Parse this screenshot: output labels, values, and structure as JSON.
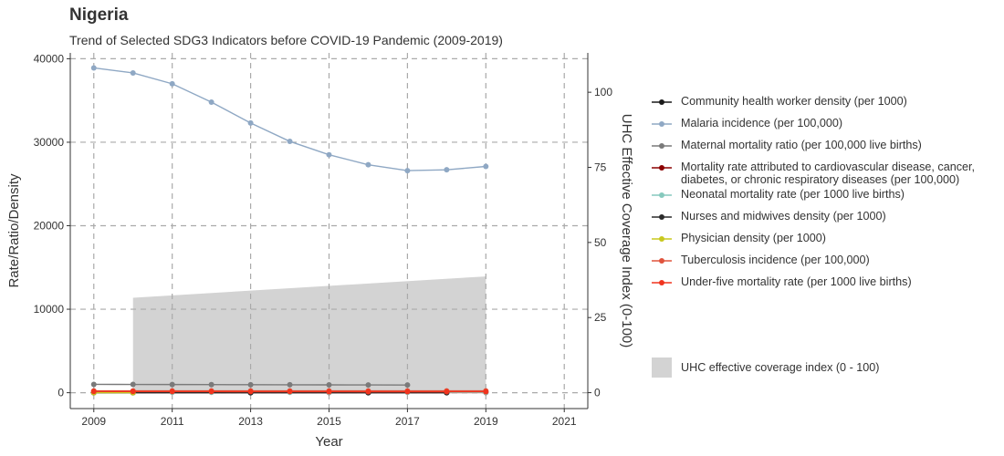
{
  "header": {
    "title": "Nigeria",
    "subtitle": "Trend of Selected SDG3 Indicators before COVID-19 Pandemic (2009-2019)"
  },
  "chart_data": {
    "type": "line",
    "xlabel": "Year",
    "ylabel": "Rate/Ratio/Density",
    "y2label": "UHC Effective Coverage Index (0-100)",
    "xlim": [
      2008.4,
      2021.6
    ],
    "ylim": [
      -1900,
      40700
    ],
    "y2lim": [
      -5.3,
      113.1
    ],
    "x_ticks": [
      2009,
      2011,
      2013,
      2015,
      2017,
      2019,
      2021
    ],
    "y_ticks": [
      0,
      10000,
      20000,
      30000,
      40000
    ],
    "y2_ticks": [
      0,
      25,
      50,
      75,
      100
    ],
    "grid": true,
    "legend_position": "right",
    "series": [
      {
        "name": "Community health worker density (per 1000)",
        "color": "#1a1a1a",
        "points": [
          [
            2009,
            0.14
          ],
          [
            2010,
            0.14
          ],
          [
            2013,
            0.14
          ],
          [
            2016,
            0.14
          ],
          [
            2018,
            0.14
          ]
        ]
      },
      {
        "name": "Malaria incidence (per 100,000)",
        "color": "#8fa8c4",
        "points": [
          [
            2009,
            38900
          ],
          [
            2010,
            38300
          ],
          [
            2011,
            37000
          ],
          [
            2012,
            34800
          ],
          [
            2013,
            32300
          ],
          [
            2014,
            30100
          ],
          [
            2015,
            28500
          ],
          [
            2016,
            27300
          ],
          [
            2017,
            26600
          ],
          [
            2018,
            26700
          ],
          [
            2019,
            27100
          ]
        ]
      },
      {
        "name": "Maternal mortality ratio (per 100,000 live births)",
        "color": "#7a7a7a",
        "points": [
          [
            2009,
            1000
          ],
          [
            2010,
            990
          ],
          [
            2011,
            980
          ],
          [
            2012,
            970
          ],
          [
            2013,
            960
          ],
          [
            2014,
            950
          ],
          [
            2015,
            940
          ],
          [
            2016,
            930
          ],
          [
            2017,
            920
          ]
        ]
      },
      {
        "name": "Mortality rate attributed to cardiovascular disease, cancer,\ndiabetes, or chronic respiratory diseases (per 100,000)",
        "color": "#8b0000",
        "points": [
          [
            2010,
            22
          ],
          [
            2015,
            22
          ],
          [
            2019,
            22
          ]
        ]
      },
      {
        "name": "Neonatal mortality rate (per 1000 live births)",
        "color": "#86c9bd",
        "points": [
          [
            2009,
            36
          ],
          [
            2010,
            36
          ],
          [
            2011,
            36
          ],
          [
            2012,
            36
          ],
          [
            2013,
            35
          ],
          [
            2014,
            35
          ],
          [
            2015,
            35
          ],
          [
            2016,
            35
          ],
          [
            2017,
            35
          ],
          [
            2018,
            35
          ],
          [
            2019,
            35
          ]
        ]
      },
      {
        "name": "Nurses and midwives density (per 1000)",
        "color": "#2b2b2b",
        "points": [
          [
            2009,
            1.2
          ],
          [
            2010,
            1.2
          ],
          [
            2013,
            1.2
          ],
          [
            2016,
            1.2
          ],
          [
            2018,
            1.2
          ]
        ]
      },
      {
        "name": "Physician density (per 1000)",
        "color": "#c8c81e",
        "points": [
          [
            2009,
            0.4
          ],
          [
            2010,
            0.4
          ]
        ]
      },
      {
        "name": "Tuberculosis incidence (per 100,000)",
        "color": "#e0533c",
        "points": [
          [
            2009,
            219
          ],
          [
            2010,
            219
          ],
          [
            2011,
            219
          ],
          [
            2012,
            219
          ],
          [
            2013,
            219
          ],
          [
            2014,
            219
          ],
          [
            2015,
            219
          ],
          [
            2016,
            219
          ],
          [
            2017,
            219
          ],
          [
            2018,
            219
          ],
          [
            2019,
            219
          ]
        ]
      },
      {
        "name": "Under-five mortality rate (per 1000 live births)",
        "color": "#f0341e",
        "points": [
          [
            2009,
            150
          ],
          [
            2010,
            145
          ],
          [
            2011,
            140
          ],
          [
            2012,
            136
          ],
          [
            2013,
            132
          ],
          [
            2014,
            128
          ],
          [
            2015,
            124
          ],
          [
            2016,
            121
          ],
          [
            2017,
            118
          ],
          [
            2018,
            116
          ],
          [
            2019,
            114
          ]
        ]
      }
    ],
    "area_series": {
      "name": "UHC effective coverage index (0 - 100)",
      "color": "#d3d3d3",
      "axis": "secondary",
      "points": [
        [
          2010,
          31.6
        ],
        [
          2019,
          38.7
        ]
      ]
    }
  }
}
